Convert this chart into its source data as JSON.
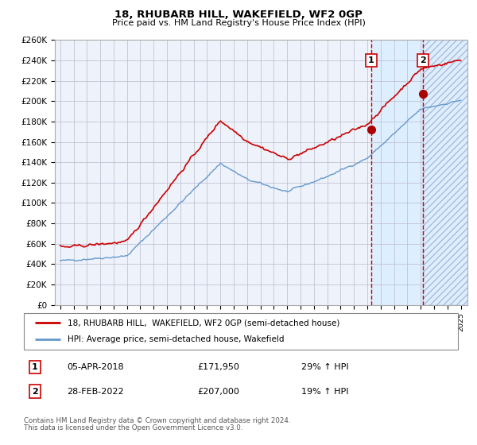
{
  "title_line1": "18, RHUBARB HILL, WAKEFIELD, WF2 0GP",
  "title_line2": "Price paid vs. HM Land Registry's House Price Index (HPI)",
  "ylim": [
    0,
    260000
  ],
  "yticks": [
    0,
    20000,
    40000,
    60000,
    80000,
    100000,
    120000,
    140000,
    160000,
    180000,
    200000,
    220000,
    240000,
    260000
  ],
  "ytick_labels": [
    "£0",
    "£20K",
    "£40K",
    "£60K",
    "£80K",
    "£100K",
    "£120K",
    "£140K",
    "£160K",
    "£180K",
    "£200K",
    "£220K",
    "£240K",
    "£260K"
  ],
  "red_line_color": "#cc0000",
  "blue_line_color": "#6699cc",
  "marker_color": "#aa0000",
  "vline_color": "#cc0000",
  "shade_color": "#ddeeff",
  "bg_color": "#eef2fb",
  "grid_color": "#bbbbcc",
  "annotation1": {
    "label": "1",
    "date_year": 2018.29,
    "price": 171950,
    "date_str": "05-APR-2018",
    "pct": "29%"
  },
  "annotation2": {
    "label": "2",
    "date_year": 2022.15,
    "price": 207000,
    "date_str": "28-FEB-2022",
    "pct": "19%"
  },
  "legend_line1": "18, RHUBARB HILL,  WAKEFIELD, WF2 0GP (semi-detached house)",
  "legend_line2": "HPI: Average price, semi-detached house, Wakefield",
  "footer1": "Contains HM Land Registry data © Crown copyright and database right 2024.",
  "footer2": "This data is licensed under the Open Government Licence v3.0.",
  "x_start_year": 1995,
  "x_end_year": 2025
}
